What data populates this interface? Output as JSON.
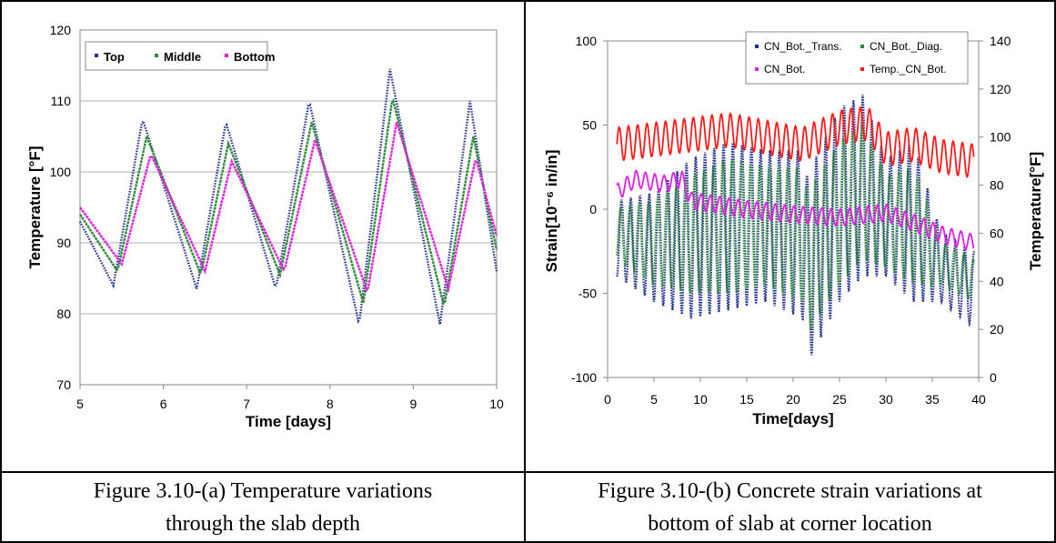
{
  "captions": {
    "a": {
      "line1": "Figure 3.10-(a) Temperature variations",
      "line2": "through the slab depth"
    },
    "b": {
      "line1": "Figure 3.10-(b) Concrete strain variations at",
      "line2": "bottom of slab at corner location"
    }
  },
  "chart_data": [
    {
      "type": "scatter",
      "xlabel": "Time [days]",
      "ylabel": "Temperature [°F]",
      "xlim": [
        5,
        10
      ],
      "ylim": [
        70,
        120
      ],
      "xticks": [
        "5",
        "6",
        "7",
        "8",
        "9",
        "10"
      ],
      "yticks": [
        "70",
        "80",
        "90",
        "100",
        "110",
        "120"
      ],
      "grid": "horizontal",
      "legend": "top-left",
      "series": [
        {
          "name": "Top",
          "color": "#1f2f8f",
          "x": [
            5.0,
            5.4,
            5.75,
            6.4,
            6.75,
            7.35,
            7.75,
            8.35,
            8.72,
            9.32,
            9.68,
            10.0
          ],
          "y": [
            93,
            84,
            107.5,
            83.5,
            107,
            83.5,
            110,
            78.5,
            114.5,
            78.5,
            110,
            86
          ]
        },
        {
          "name": "Middle",
          "color": "#2e8b3a",
          "x": [
            5.0,
            5.45,
            5.8,
            6.45,
            6.78,
            7.4,
            7.78,
            8.4,
            8.75,
            9.37,
            9.72,
            10.0
          ],
          "y": [
            94,
            86,
            105,
            85.5,
            104,
            85.5,
            107,
            81.5,
            110.5,
            81,
            105,
            89
          ]
        },
        {
          "name": "Bottom",
          "color": "#e020e0",
          "x": [
            5.0,
            5.5,
            5.85,
            6.5,
            6.82,
            7.45,
            7.82,
            8.45,
            8.8,
            9.42,
            9.75,
            10.0
          ],
          "y": [
            95,
            87,
            102.5,
            86,
            101.5,
            86,
            104.5,
            83,
            107,
            83.5,
            102,
            91
          ]
        }
      ]
    },
    {
      "type": "scatter",
      "xlabel": "Time[days]",
      "ylabel": "Strain[10⁻⁶ in/in]",
      "y2label": "Temperature[°F]",
      "xlim": [
        0,
        40
      ],
      "ylim": [
        -100,
        100
      ],
      "y2lim": [
        0,
        140
      ],
      "xticks": [
        "0",
        "5",
        "10",
        "15",
        "20",
        "25",
        "30",
        "35",
        "40"
      ],
      "yticks": [
        "-100",
        "-50",
        "0",
        "50",
        "100"
      ],
      "y2ticks": [
        "0",
        "20",
        "40",
        "60",
        "80",
        "100",
        "120",
        "140"
      ],
      "grid": "none",
      "legend": "top-right",
      "series": [
        {
          "name": "CN_Bot._Trans.",
          "color": "#1f2f8f",
          "axis": "left",
          "x": [
            1,
            5,
            9,
            13,
            17,
            21,
            21.5,
            25,
            27.5,
            30,
            33,
            36,
            39.5
          ],
          "min": [
            -40,
            -55,
            -65,
            -60,
            -55,
            -65,
            -92,
            -55,
            -40,
            -40,
            -55,
            -55,
            -70
          ],
          "max": [
            5,
            10,
            30,
            40,
            35,
            35,
            20,
            60,
            68,
            30,
            40,
            -15,
            -25
          ]
        },
        {
          "name": "CN_Bot._Diag.",
          "color": "#2e8b3a",
          "axis": "left",
          "x": [
            1,
            5,
            9,
            13,
            17,
            21,
            21.5,
            25,
            27.5,
            30,
            33,
            36,
            39.5
          ],
          "min": [
            -30,
            -45,
            -50,
            -50,
            -45,
            -55,
            -75,
            -45,
            -30,
            -35,
            -45,
            -45,
            -55
          ],
          "max": [
            0,
            5,
            20,
            30,
            25,
            25,
            10,
            40,
            50,
            20,
            25,
            -20,
            -30
          ]
        },
        {
          "name": "CN_Bot.",
          "color": "#e020e0",
          "axis": "left",
          "x": [
            1,
            3,
            6,
            8,
            9,
            15,
            20,
            25,
            30,
            33,
            36,
            39.5
          ],
          "y": [
            10,
            18,
            15,
            18,
            5,
            0,
            -3,
            -5,
            -2,
            -8,
            -15,
            -20
          ]
        },
        {
          "name": "Temp._CN_Bot.",
          "color": "#ff1a1a",
          "axis": "right",
          "x": [
            1,
            5,
            9,
            13,
            17,
            21,
            25,
            28,
            30,
            33,
            36,
            39.5
          ],
          "y": [
            97,
            99,
            101,
            103,
            100,
            97,
            104,
            106,
            95,
            97,
            92,
            90
          ]
        }
      ]
    }
  ]
}
